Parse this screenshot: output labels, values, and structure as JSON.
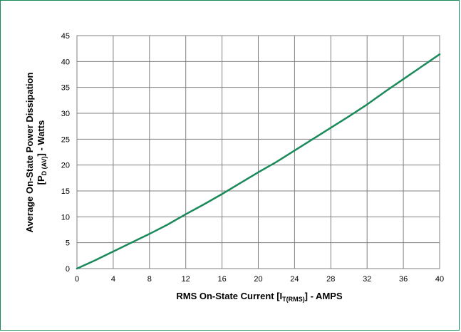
{
  "chart_data": {
    "type": "line",
    "title": "",
    "xlabel": {
      "prefix": "RMS On-State Current [I",
      "sub": "T(RMS)",
      "suffix": "] - AMPS"
    },
    "ylabel": {
      "line1": "Average On-State Power Dissipation",
      "line2_prefix": "[P",
      "line2_sub": "D (AV)",
      "line2_suffix": "] - Watts"
    },
    "xlim": [
      0,
      40
    ],
    "ylim": [
      0,
      45
    ],
    "x_ticks": [
      0,
      4,
      8,
      12,
      16,
      20,
      24,
      28,
      32,
      36,
      40
    ],
    "y_ticks": [
      0,
      5,
      10,
      15,
      20,
      25,
      30,
      35,
      40,
      45
    ],
    "grid": true,
    "line_color": "#1a8a5a",
    "series": [
      {
        "x": [
          0,
          2,
          4,
          6,
          8,
          10,
          12,
          14,
          16,
          18,
          20,
          22,
          24,
          26,
          28,
          30,
          32,
          34,
          36,
          38,
          40
        ],
        "y": [
          0,
          1.6,
          3.3,
          5.0,
          6.7,
          8.5,
          10.5,
          12.4,
          14.4,
          16.5,
          18.6,
          20.6,
          22.8,
          25.0,
          27.2,
          29.4,
          31.7,
          34.2,
          36.6,
          39.0,
          41.4
        ]
      }
    ]
  }
}
